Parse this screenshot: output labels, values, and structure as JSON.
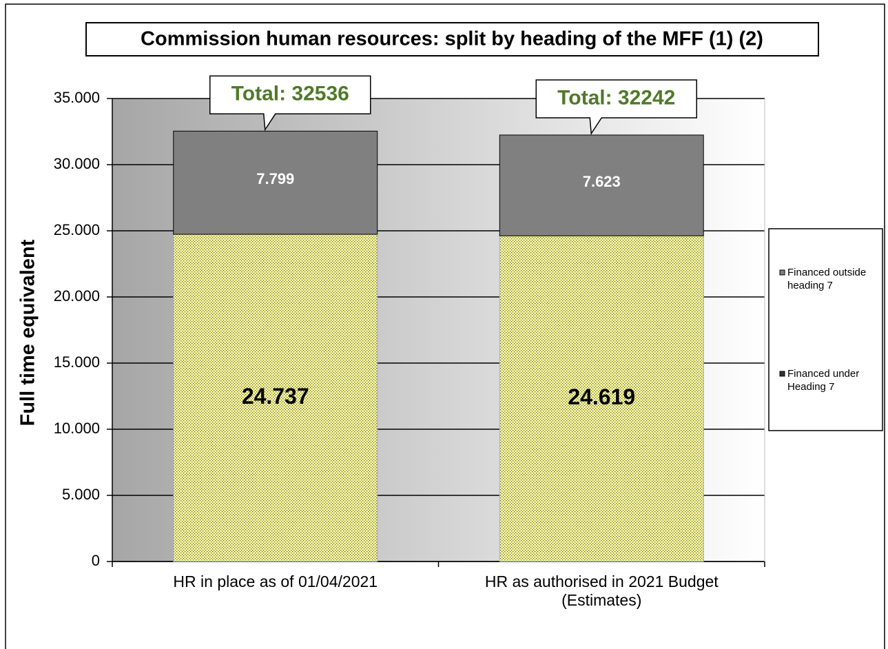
{
  "chart_data": {
    "type": "stacked_bar",
    "title": "Commission  human resources: split by heading of the MFF (1) (2)",
    "y_label": "Full time equivalent",
    "categories": [
      "HR in place as of 01/04/2021",
      "HR as authorised in 2021 Budget (Estimates)"
    ],
    "series": [
      {
        "name": "Financed under Heading 7",
        "color": "#ffff99",
        "values": [
          24737,
          24619
        ],
        "value_labels": [
          "24.737",
          "24.619"
        ]
      },
      {
        "name": "Financed outside heading 7",
        "color": "#808080",
        "values": [
          7799,
          7623
        ],
        "value_labels": [
          "7.799",
          "7.623"
        ]
      }
    ],
    "annotations": [
      "Total: 32536",
      "Total: 32242"
    ],
    "ylim": [
      0,
      35000
    ],
    "yticks": [
      0,
      {
        "value": 5000,
        "label": "5.000"
      },
      {
        "value": 10000,
        "label": "10.000"
      },
      {
        "value": 15000,
        "label": "15.000"
      },
      {
        "value": 20000,
        "label": "20.000"
      },
      {
        "value": 25000,
        "label": "25.000"
      },
      {
        "value": 30000,
        "label": "30.000"
      },
      {
        "value": 35000,
        "label": "35.000"
      }
    ],
    "grid": true,
    "legend": "right"
  }
}
